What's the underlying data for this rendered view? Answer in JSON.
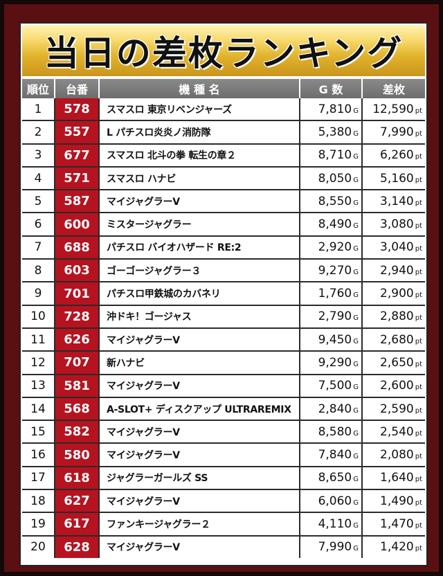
{
  "title": "当日の差枚ランキング",
  "headers": {
    "rank": "順位",
    "number": "台番",
    "model": "機 種 名",
    "games": "G 数",
    "diff": "差枚"
  },
  "units": {
    "games": "G",
    "diff": "pt"
  },
  "rows": [
    {
      "rank": "1",
      "number": "578",
      "model": "スマスロ 東京リベンジャーズ",
      "games": "7,810",
      "diff": "12,590"
    },
    {
      "rank": "2",
      "number": "557",
      "model": "L パチスロ炎炎ノ消防隊",
      "games": "5,380",
      "diff": "7,990"
    },
    {
      "rank": "3",
      "number": "677",
      "model": "スマスロ 北斗の拳 転生の章２",
      "games": "8,710",
      "diff": "6,260"
    },
    {
      "rank": "4",
      "number": "571",
      "model": "スマスロ ハナビ",
      "games": "8,050",
      "diff": "5,160"
    },
    {
      "rank": "5",
      "number": "587",
      "model": "マイジャグラーV",
      "games": "8,550",
      "diff": "3,140"
    },
    {
      "rank": "6",
      "number": "600",
      "model": "ミスタージャグラー",
      "games": "8,490",
      "diff": "3,080"
    },
    {
      "rank": "7",
      "number": "688",
      "model": "パチスロ バイオハザード RE:2",
      "games": "2,920",
      "diff": "3,040"
    },
    {
      "rank": "8",
      "number": "603",
      "model": "ゴーゴージャグラー３",
      "games": "9,270",
      "diff": "2,940"
    },
    {
      "rank": "9",
      "number": "701",
      "model": "パチスロ甲鉄城のカバネリ",
      "games": "1,760",
      "diff": "2,900"
    },
    {
      "rank": "10",
      "number": "728",
      "model": "沖ドキ！ゴージャス",
      "games": "2,790",
      "diff": "2,880"
    },
    {
      "rank": "11",
      "number": "626",
      "model": "マイジャグラーV",
      "games": "9,450",
      "diff": "2,680"
    },
    {
      "rank": "12",
      "number": "707",
      "model": "新ハナビ",
      "games": "9,290",
      "diff": "2,650"
    },
    {
      "rank": "13",
      "number": "581",
      "model": "マイジャグラーV",
      "games": "7,500",
      "diff": "2,600"
    },
    {
      "rank": "14",
      "number": "568",
      "model": "A-SLOT+ ディスクアップ ULTRAREMIX",
      "games": "2,840",
      "diff": "2,590"
    },
    {
      "rank": "15",
      "number": "582",
      "model": "マイジャグラーV",
      "games": "8,580",
      "diff": "2,540"
    },
    {
      "rank": "16",
      "number": "580",
      "model": "マイジャグラーV",
      "games": "7,840",
      "diff": "2,080"
    },
    {
      "rank": "17",
      "number": "618",
      "model": "ジャグラーガールズ SS",
      "games": "8,650",
      "diff": "1,640"
    },
    {
      "rank": "18",
      "number": "627",
      "model": "マイジャグラーV",
      "games": "6,060",
      "diff": "1,490"
    },
    {
      "rank": "19",
      "number": "617",
      "model": "ファンキージャグラー２",
      "games": "4,110",
      "diff": "1,470"
    },
    {
      "rank": "20",
      "number": "628",
      "model": "マイジャグラーV",
      "games": "7,990",
      "diff": "1,420"
    }
  ]
}
